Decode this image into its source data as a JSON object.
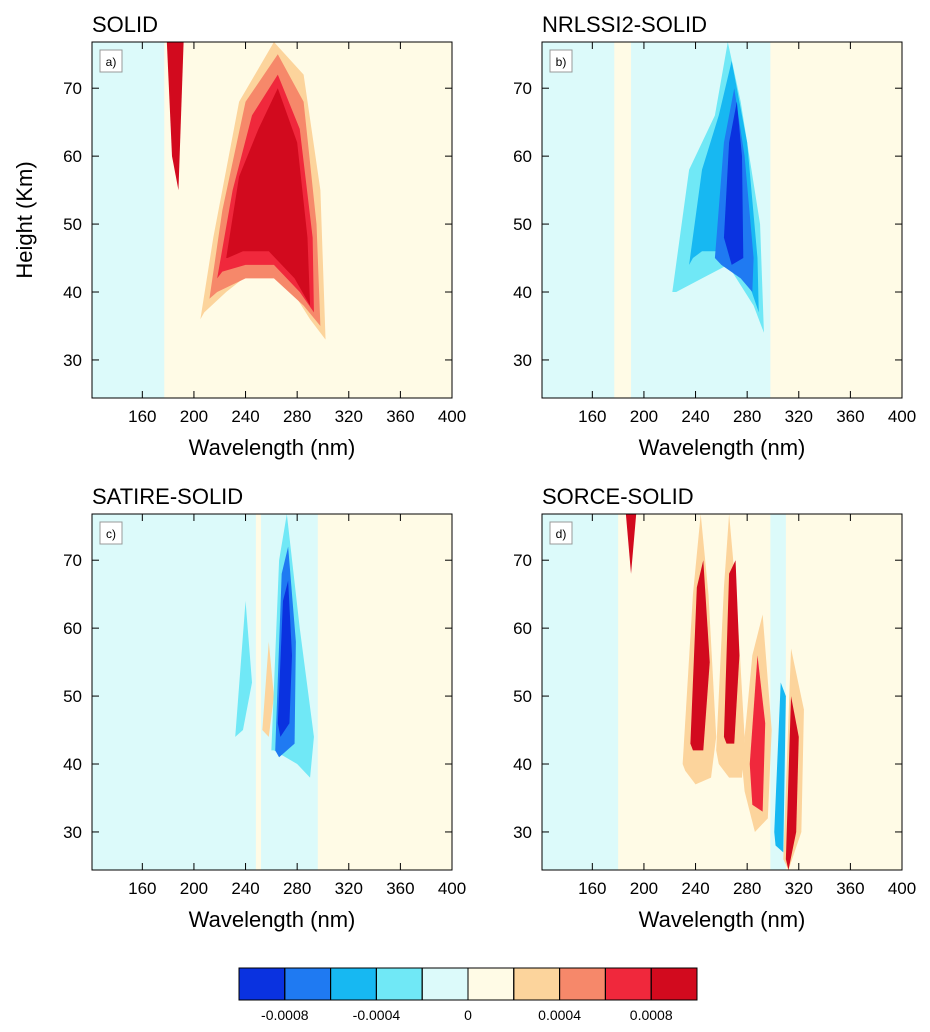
{
  "chart_data": [
    {
      "type": "contour",
      "title": "SOLID",
      "panel_label": "a)",
      "x_label": "Wavelength (nm)",
      "y_label": "Height (Km)",
      "xlim": [
        121,
        400
      ],
      "xticks": [
        160,
        200,
        240,
        280,
        320,
        360,
        400
      ],
      "ylim": [
        24.4,
        76.8
      ],
      "yticks": [
        30,
        40,
        50,
        60,
        70
      ],
      "regions": [
        {
          "value": -0.0001,
          "x": [
            121,
            177,
            177,
            121
          ],
          "y": [
            24.4,
            24.4,
            76.8,
            76.8
          ]
        },
        {
          "value": 0.0003,
          "x": [
            205,
            215,
            235,
            262,
            285,
            298,
            302,
            290,
            270,
            245,
            225,
            208
          ],
          "y": [
            36,
            48,
            68,
            76.8,
            72,
            55,
            33,
            36,
            42,
            43,
            40,
            37
          ]
        },
        {
          "value": 0.0005,
          "x": [
            212,
            222,
            240,
            265,
            285,
            295,
            298,
            285,
            262,
            240,
            218
          ],
          "y": [
            39,
            52,
            68,
            75,
            68,
            50,
            35,
            38,
            42,
            42,
            40
          ]
        },
        {
          "value": 0.0007,
          "x": [
            218,
            230,
            245,
            265,
            282,
            292,
            293,
            282,
            262,
            240,
            222
          ],
          "y": [
            42,
            55,
            66,
            72,
            64,
            48,
            37,
            40,
            44,
            44,
            43
          ]
        },
        {
          "value": 0.0009,
          "x": [
            225,
            235,
            250,
            265,
            280,
            288,
            290,
            278,
            258,
            238,
            226
          ],
          "y": [
            45,
            57,
            64,
            70,
            62,
            48,
            38,
            42,
            46,
            46,
            45
          ]
        },
        {
          "value": 0.0009,
          "x": [
            179,
            186,
            192,
            188,
            183
          ],
          "y": [
            76.8,
            76.8,
            76.8,
            55,
            60
          ]
        }
      ]
    },
    {
      "type": "contour",
      "title": "NRLSSI2-SOLID",
      "panel_label": "b)",
      "x_label": "Wavelength (nm)",
      "xlim": [
        121,
        400
      ],
      "xticks": [
        160,
        200,
        240,
        280,
        320,
        360,
        400
      ],
      "ylim": [
        24.4,
        76.8
      ],
      "yticks": [
        30,
        40,
        50,
        60,
        70
      ],
      "regions": [
        {
          "value": -0.0001,
          "x": [
            121,
            177,
            177,
            121
          ],
          "y": [
            24.4,
            24.4,
            76.8,
            76.8
          ]
        },
        {
          "value": -0.0001,
          "x": [
            190,
            298,
            298,
            190
          ],
          "y": [
            24.4,
            24.4,
            76.8,
            76.8
          ]
        },
        {
          "value": -0.0003,
          "x": [
            222,
            235,
            255,
            265,
            275,
            290,
            293,
            285,
            265,
            245,
            225
          ],
          "y": [
            40,
            58,
            66,
            76.8,
            68,
            50,
            34,
            38,
            44,
            42,
            40
          ]
        },
        {
          "value": -0.0005,
          "x": [
            235,
            245,
            258,
            268,
            280,
            288,
            289,
            280,
            262,
            245,
            238
          ],
          "y": [
            44,
            58,
            66,
            74,
            62,
            45,
            37,
            42,
            46,
            46,
            45
          ]
        },
        {
          "value": -0.0007,
          "x": [
            255,
            262,
            270,
            278,
            285,
            284,
            275,
            260
          ],
          "y": [
            45,
            62,
            70,
            60,
            45,
            40,
            42,
            44
          ]
        },
        {
          "value": -0.0009,
          "x": [
            262,
            266,
            272,
            276,
            277,
            268
          ],
          "y": [
            48,
            62,
            68,
            60,
            45,
            44
          ]
        }
      ]
    },
    {
      "type": "contour",
      "title": "SATIRE-SOLID",
      "panel_label": "c)",
      "x_label": "Wavelength (nm)",
      "xlim": [
        121,
        400
      ],
      "xticks": [
        160,
        200,
        240,
        280,
        320,
        360,
        400
      ],
      "ylim": [
        24.4,
        76.8
      ],
      "yticks": [
        30,
        40,
        50,
        60,
        70
      ],
      "regions": [
        {
          "value": -0.0001,
          "x": [
            121,
            248,
            248,
            121
          ],
          "y": [
            24.4,
            24.4,
            76.8,
            76.8
          ]
        },
        {
          "value": -0.0001,
          "x": [
            252,
            296,
            296,
            252
          ],
          "y": [
            24.4,
            24.4,
            76.8,
            76.8
          ]
        },
        {
          "value": -0.0003,
          "x": [
            232,
            240,
            245,
            238
          ],
          "y": [
            44,
            64,
            52,
            45
          ]
        },
        {
          "value": 0.0003,
          "x": [
            253,
            258,
            262,
            258
          ],
          "y": [
            45,
            58,
            50,
            44
          ]
        },
        {
          "value": -0.0003,
          "x": [
            260,
            266,
            272,
            282,
            293,
            290,
            280,
            262
          ],
          "y": [
            42,
            70,
            76.8,
            60,
            44,
            38,
            40,
            42
          ]
        },
        {
          "value": -0.0007,
          "x": [
            263,
            268,
            273,
            279,
            278,
            266
          ],
          "y": [
            42,
            68,
            72,
            58,
            43,
            41
          ]
        },
        {
          "value": -0.0009,
          "x": [
            265,
            269,
            273,
            276,
            274,
            267
          ],
          "y": [
            46,
            64,
            67,
            56,
            46,
            44
          ]
        }
      ]
    },
    {
      "type": "contour",
      "title": "SORCE-SOLID",
      "panel_label": "d)",
      "x_label": "Wavelength (nm)",
      "xlim": [
        121,
        400
      ],
      "xticks": [
        160,
        200,
        240,
        280,
        320,
        360,
        400
      ],
      "ylim": [
        24.4,
        76.8
      ],
      "yticks": [
        30,
        40,
        50,
        60,
        70
      ],
      "regions": [
        {
          "value": -0.0001,
          "x": [
            121,
            180,
            180,
            121
          ],
          "y": [
            24.4,
            24.4,
            76.8,
            76.8
          ]
        },
        {
          "value": -0.0001,
          "x": [
            298,
            310,
            310,
            298
          ],
          "y": [
            24.4,
            24.4,
            76.8,
            76.8
          ]
        },
        {
          "value": 0.0003,
          "x": [
            230,
            238,
            244,
            250,
            256,
            252,
            240,
            232
          ],
          "y": [
            40,
            65,
            76.8,
            65,
            44,
            38,
            37,
            39
          ]
        },
        {
          "value": 0.0003,
          "x": [
            256,
            262,
            266,
            272,
            278,
            276,
            266,
            258
          ],
          "y": [
            42,
            66,
            76.8,
            64,
            44,
            38,
            38,
            40
          ]
        },
        {
          "value": 0.0003,
          "x": [
            276,
            284,
            292,
            299,
            296,
            286,
            278
          ],
          "y": [
            40,
            56,
            62,
            45,
            32,
            30,
            36
          ]
        },
        {
          "value": 0.0009,
          "x": [
            236,
            241,
            246,
            251,
            246,
            238
          ],
          "y": [
            43,
            66,
            70,
            55,
            42,
            42
          ]
        },
        {
          "value": 0.0009,
          "x": [
            262,
            266,
            271,
            274,
            270,
            264
          ],
          "y": [
            44,
            68,
            70,
            56,
            43,
            43
          ]
        },
        {
          "value": 0.0007,
          "x": [
            282,
            288,
            294,
            292,
            284
          ],
          "y": [
            40,
            56,
            46,
            33,
            34
          ]
        },
        {
          "value": -0.0005,
          "x": [
            301,
            306,
            310,
            308,
            302
          ],
          "y": [
            30,
            52,
            50,
            27,
            28
          ]
        },
        {
          "value": 0.0003,
          "x": [
            308,
            314,
            324,
            322,
            312
          ],
          "y": [
            26,
            57,
            48,
            30,
            24.4
          ]
        },
        {
          "value": 0.0009,
          "x": [
            310,
            314,
            320,
            318,
            312
          ],
          "y": [
            26,
            50,
            44,
            30,
            24.4
          ]
        },
        {
          "value": 0.0009,
          "x": [
            186,
            190,
            194,
            190
          ],
          "y": [
            76.8,
            76.8,
            76.8,
            68
          ]
        }
      ]
    },
    {
      "type": "colorbar",
      "levels": [
        -0.0008,
        -0.0006,
        -0.0004,
        -0.0002,
        0,
        0.0002,
        0.0004,
        0.0006,
        0.0008
      ],
      "colors": [
        "#0a32e0",
        "#1f7af2",
        "#17b8f2",
        "#70e8f6",
        "#dcfafa",
        "#fffbe6",
        "#fcd49c",
        "#f6886a",
        "#f0283c",
        "#d20a1e"
      ],
      "ticks": [
        -0.0008,
        -0.0004,
        0,
        0.0004,
        0.0008
      ]
    }
  ]
}
